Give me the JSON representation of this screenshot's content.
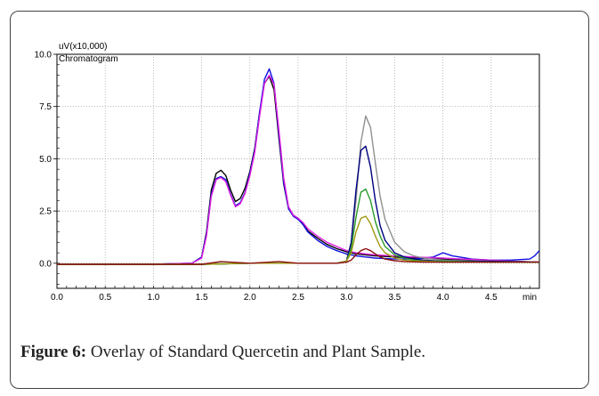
{
  "figure": {
    "label": "Figure 6:",
    "caption": "Overlay of Standard Quercetin and Plant Sample."
  },
  "chart_data": {
    "type": "line",
    "title": "Chromatogram",
    "ylabel": "uV(x10,000)",
    "xlabel": "min",
    "xlim": [
      0.0,
      5.0
    ],
    "ylim": [
      -1.2,
      10.0
    ],
    "grid": true,
    "x_ticks": [
      "0.0",
      "0.5",
      "1.0",
      "1.5",
      "2.0",
      "2.5",
      "3.0",
      "3.5",
      "4.0",
      "4.5"
    ],
    "y_ticks": [
      "0.0",
      "2.5",
      "5.0",
      "7.5",
      "10.0"
    ],
    "colors": [
      "#000000",
      "#1010e0",
      "#e020e0",
      "#909090",
      "#000080",
      "#2a9a2a",
      "#a09a10",
      "#8a1010"
    ],
    "series": [
      {
        "color": "#000000",
        "x": [
          0.0,
          1.0,
          1.4,
          1.5,
          1.55,
          1.6,
          1.65,
          1.7,
          1.75,
          1.8,
          1.85,
          1.9,
          1.95,
          2.0,
          2.05,
          2.1,
          2.15,
          2.2,
          2.25,
          2.3,
          2.35,
          2.4,
          2.45,
          2.5,
          2.55,
          2.6,
          2.7,
          2.8,
          2.9,
          3.0,
          3.1,
          3.2,
          3.3,
          3.5,
          3.7,
          4.0,
          4.2,
          4.5,
          4.7,
          5.0
        ],
        "y": [
          -0.05,
          -0.05,
          0.0,
          0.3,
          1.5,
          3.5,
          4.3,
          4.45,
          4.2,
          3.5,
          2.95,
          3.1,
          3.6,
          4.4,
          5.5,
          7.2,
          8.6,
          8.95,
          8.3,
          6.0,
          3.8,
          2.6,
          2.3,
          2.15,
          1.9,
          1.55,
          1.2,
          0.9,
          0.7,
          0.55,
          0.45,
          0.4,
          0.35,
          0.3,
          0.25,
          0.2,
          0.15,
          0.1,
          0.1,
          0.05
        ]
      },
      {
        "color": "#1010e0",
        "x": [
          0.0,
          1.0,
          1.4,
          1.5,
          1.55,
          1.6,
          1.65,
          1.7,
          1.75,
          1.8,
          1.85,
          1.9,
          1.95,
          2.0,
          2.05,
          2.1,
          2.15,
          2.2,
          2.25,
          2.3,
          2.35,
          2.4,
          2.45,
          2.5,
          2.55,
          2.6,
          2.7,
          2.8,
          2.9,
          3.0,
          3.1,
          3.2,
          3.3,
          3.5,
          3.7,
          3.9,
          4.0,
          4.1,
          4.3,
          4.5,
          4.7,
          4.9,
          4.95,
          5.0
        ],
        "y": [
          -0.05,
          -0.05,
          0.0,
          0.3,
          1.4,
          3.3,
          4.05,
          4.15,
          4.0,
          3.3,
          2.75,
          2.9,
          3.4,
          4.3,
          5.4,
          7.2,
          8.8,
          9.3,
          8.6,
          6.2,
          3.9,
          2.6,
          2.25,
          2.1,
          1.85,
          1.5,
          1.1,
          0.8,
          0.6,
          0.45,
          0.35,
          0.3,
          0.25,
          0.2,
          0.2,
          0.3,
          0.5,
          0.35,
          0.2,
          0.15,
          0.15,
          0.2,
          0.35,
          0.6
        ]
      },
      {
        "color": "#e020e0",
        "x": [
          0.0,
          1.0,
          1.4,
          1.5,
          1.55,
          1.6,
          1.65,
          1.7,
          1.75,
          1.8,
          1.85,
          1.9,
          1.95,
          2.0,
          2.05,
          2.1,
          2.15,
          2.2,
          2.25,
          2.3,
          2.35,
          2.4,
          2.45,
          2.5,
          2.55,
          2.6,
          2.7,
          2.8,
          2.9,
          3.0,
          3.1,
          3.2,
          3.3,
          3.5,
          3.7,
          4.0,
          4.2,
          4.5,
          4.7,
          5.0
        ],
        "y": [
          -0.05,
          -0.05,
          0.0,
          0.25,
          1.3,
          3.2,
          4.0,
          4.1,
          3.9,
          3.25,
          2.7,
          2.85,
          3.35,
          4.2,
          5.3,
          7.0,
          8.6,
          9.0,
          8.55,
          6.4,
          4.1,
          2.7,
          2.3,
          2.15,
          1.95,
          1.65,
          1.3,
          1.0,
          0.8,
          0.6,
          0.5,
          0.45,
          0.4,
          0.35,
          0.3,
          0.25,
          0.2,
          0.15,
          0.1,
          0.05
        ]
      },
      {
        "color": "#909090",
        "x": [
          0.0,
          1.5,
          2.0,
          2.5,
          2.9,
          3.0,
          3.05,
          3.1,
          3.15,
          3.2,
          3.25,
          3.3,
          3.35,
          3.4,
          3.5,
          3.6,
          3.7,
          3.8,
          4.0,
          4.5,
          5.0
        ],
        "y": [
          -0.05,
          -0.05,
          0.0,
          0.0,
          0.0,
          0.1,
          0.8,
          3.0,
          5.8,
          7.05,
          6.5,
          4.8,
          3.2,
          2.1,
          1.0,
          0.55,
          0.35,
          0.25,
          0.15,
          0.1,
          0.05
        ]
      },
      {
        "color": "#000080",
        "x": [
          0.0,
          1.5,
          2.0,
          2.5,
          2.9,
          3.0,
          3.05,
          3.1,
          3.15,
          3.2,
          3.25,
          3.3,
          3.35,
          3.4,
          3.5,
          3.6,
          3.7,
          3.8,
          4.0,
          4.5,
          5.0
        ],
        "y": [
          -0.05,
          -0.05,
          0.0,
          0.0,
          0.0,
          0.1,
          1.0,
          3.5,
          5.4,
          5.6,
          4.6,
          3.0,
          1.8,
          1.1,
          0.5,
          0.3,
          0.2,
          0.15,
          0.1,
          0.1,
          0.05
        ]
      },
      {
        "color": "#2a9a2a",
        "x": [
          0.0,
          1.5,
          2.0,
          2.5,
          2.9,
          3.0,
          3.05,
          3.1,
          3.15,
          3.2,
          3.25,
          3.3,
          3.35,
          3.4,
          3.5,
          3.6,
          3.7,
          3.8,
          4.0,
          4.5,
          5.0
        ],
        "y": [
          -0.05,
          -0.05,
          0.0,
          0.0,
          0.0,
          0.1,
          0.7,
          2.2,
          3.4,
          3.55,
          3.0,
          2.0,
          1.3,
          0.8,
          0.4,
          0.25,
          0.15,
          0.1,
          0.1,
          0.05,
          0.05
        ]
      },
      {
        "color": "#a09a10",
        "x": [
          0.0,
          1.5,
          2.0,
          2.5,
          2.9,
          3.0,
          3.05,
          3.1,
          3.15,
          3.2,
          3.25,
          3.3,
          3.35,
          3.4,
          3.5,
          3.6,
          3.7,
          3.8,
          4.0,
          4.5,
          5.0
        ],
        "y": [
          -0.05,
          -0.05,
          0.0,
          0.0,
          0.0,
          0.1,
          0.5,
          1.5,
          2.15,
          2.25,
          1.9,
          1.3,
          0.8,
          0.5,
          0.25,
          0.15,
          0.1,
          0.1,
          0.05,
          0.05,
          0.05
        ]
      },
      {
        "color": "#8a1010",
        "x": [
          0.0,
          1.5,
          1.7,
          1.8,
          2.0,
          2.3,
          2.5,
          2.9,
          3.0,
          3.05,
          3.1,
          3.15,
          3.2,
          3.25,
          3.3,
          3.35,
          3.4,
          3.5,
          3.6,
          3.8,
          4.0,
          4.5,
          5.0
        ],
        "y": [
          -0.05,
          -0.05,
          0.08,
          0.05,
          0.0,
          0.08,
          0.0,
          0.0,
          0.05,
          0.15,
          0.4,
          0.6,
          0.7,
          0.6,
          0.45,
          0.3,
          0.2,
          0.12,
          0.08,
          0.05,
          0.05,
          0.05,
          0.05
        ]
      }
    ]
  }
}
